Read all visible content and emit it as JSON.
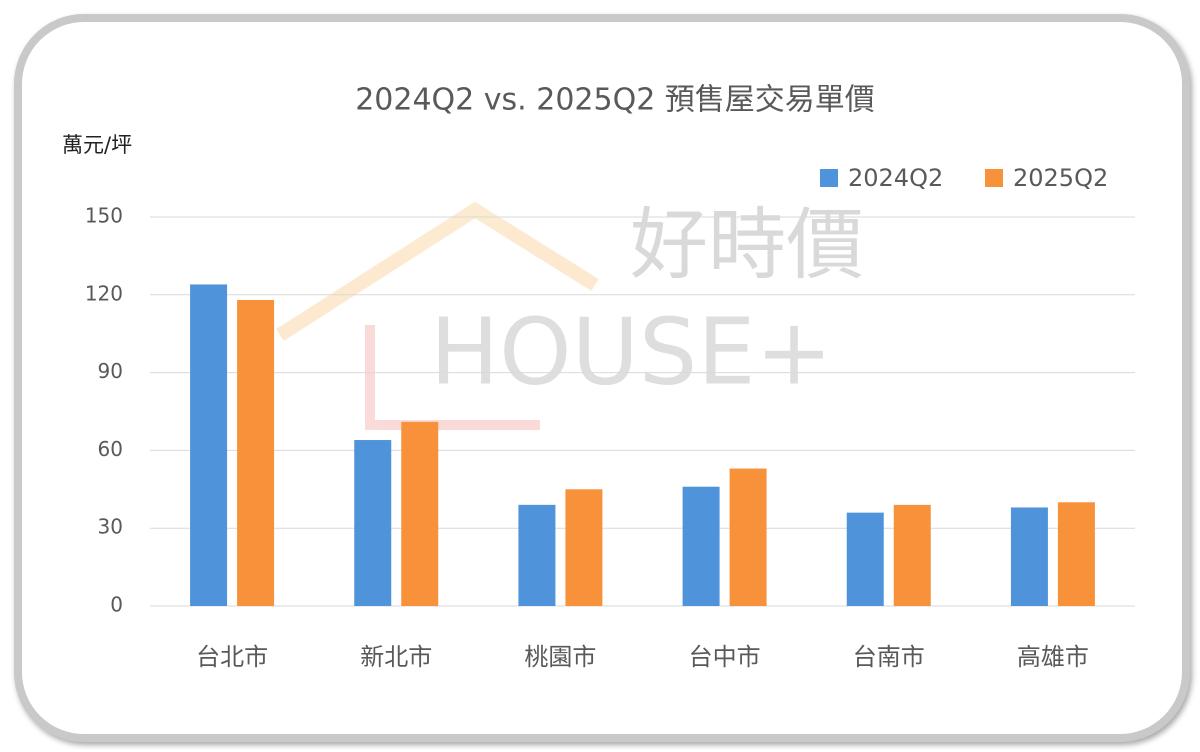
{
  "chart_data": {
    "type": "bar",
    "title": "2024Q2 vs. 2025Q2 預售屋交易單價",
    "y_axis_label": "萬元/坪",
    "categories": [
      "台北市",
      "新北市",
      "桃園市",
      "台中市",
      "台南市",
      "高雄市"
    ],
    "series": [
      {
        "name": "2024Q2",
        "color": "#4f94da",
        "values": [
          124,
          64,
          39,
          46,
          36,
          38
        ]
      },
      {
        "name": "2025Q2",
        "color": "#f8923a",
        "values": [
          118,
          71,
          45,
          53,
          39,
          40
        ]
      }
    ],
    "ylim": [
      0,
      150
    ],
    "yticks": [
      0,
      30,
      60,
      90,
      120,
      150
    ],
    "grid": true,
    "legend": "top-right",
    "watermark": {
      "brand": "好時價",
      "logo": "HOUSE+"
    }
  }
}
